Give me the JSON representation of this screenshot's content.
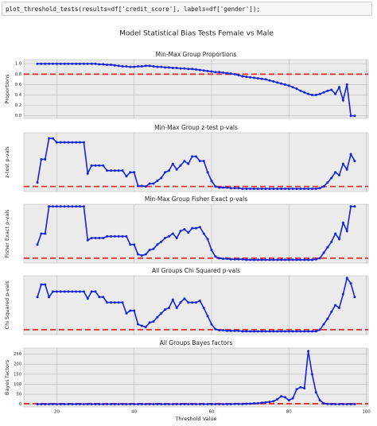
{
  "code": "plot_threshold_tests(results=df['credit_score'], labels=df['gender']);",
  "title": "Model Statistical Bias Tests Female vs Male",
  "chart_data": [
    {
      "type": "line",
      "title": "Min-Max Group Proportions",
      "ylabel": "Proportions",
      "x": [
        15,
        16,
        17,
        18,
        19,
        20,
        21,
        22,
        23,
        24,
        25,
        26,
        27,
        28,
        29,
        30,
        31,
        32,
        33,
        34,
        35,
        36,
        37,
        38,
        39,
        40,
        41,
        42,
        43,
        44,
        45,
        46,
        47,
        48,
        49,
        50,
        51,
        52,
        53,
        54,
        55,
        56,
        57,
        58,
        59,
        60,
        61,
        62,
        63,
        64,
        65,
        66,
        67,
        68,
        69,
        70,
        71,
        72,
        73,
        74,
        75,
        76,
        77,
        78,
        79,
        80,
        81,
        82,
        83,
        84,
        85,
        86,
        87,
        88,
        89,
        90,
        91,
        92,
        93,
        94,
        95,
        96,
        97
      ],
      "series": [
        {
          "color": "#1524d8",
          "values": [
            1,
            1,
            1,
            1,
            1,
            1,
            1,
            1,
            1,
            1,
            1,
            1,
            1,
            1,
            1,
            1,
            0.99,
            0.99,
            0.98,
            0.98,
            0.97,
            0.96,
            0.95,
            0.95,
            0.94,
            0.94,
            0.95,
            0.95,
            0.96,
            0.96,
            0.95,
            0.94,
            0.94,
            0.93,
            0.93,
            0.92,
            0.92,
            0.91,
            0.91,
            0.9,
            0.9,
            0.89,
            0.88,
            0.87,
            0.86,
            0.85,
            0.84,
            0.84,
            0.83,
            0.82,
            0.81,
            0.8,
            0.78,
            0.76,
            0.75,
            0.74,
            0.73,
            0.72,
            0.71,
            0.7,
            0.68,
            0.66,
            0.64,
            0.62,
            0.6,
            0.58,
            0.55,
            0.52,
            0.48,
            0.45,
            0.42,
            0.4,
            0.4,
            0.42,
            0.45,
            0.48,
            0.5,
            0.42,
            0.55,
            0.3,
            0.6,
            0,
            0
          ]
        }
      ],
      "reference_line": {
        "value": 0.8,
        "color": "#e8302b"
      },
      "xlim": [
        11.5,
        100.5
      ],
      "xticks": [
        20,
        40,
        60,
        80,
        100
      ],
      "ylim": [
        -0.05,
        1.08
      ],
      "yticks": [
        {
          "value": 0,
          "label": "0.0"
        },
        0.2,
        0.4,
        0.6,
        0.8,
        {
          "value": 1,
          "label": "1.0"
        }
      ],
      "grid": true
    },
    {
      "type": "line",
      "title": "Min-Max Group z-test p-vals",
      "ylabel": "z-test p-vals",
      "x": [
        15,
        16,
        17,
        18,
        19,
        20,
        21,
        22,
        23,
        24,
        25,
        26,
        27,
        28,
        29,
        30,
        31,
        32,
        33,
        34,
        35,
        36,
        37,
        38,
        39,
        40,
        41,
        42,
        43,
        44,
        45,
        46,
        47,
        48,
        49,
        50,
        51,
        52,
        53,
        54,
        55,
        56,
        57,
        58,
        59,
        60,
        61,
        62,
        63,
        64,
        65,
        66,
        67,
        68,
        69,
        70,
        71,
        72,
        73,
        74,
        75,
        76,
        77,
        78,
        79,
        80,
        81,
        82,
        83,
        84,
        85,
        86,
        87,
        88,
        89,
        90,
        91,
        92,
        93,
        94,
        95,
        96,
        97
      ],
      "series": [
        {
          "color": "#1524d8",
          "values": [
            0.12,
            0.53,
            0.53,
            0.9,
            0.9,
            0.83,
            0.83,
            0.83,
            0.83,
            0.83,
            0.83,
            0.83,
            0.83,
            0.28,
            0.42,
            0.42,
            0.42,
            0.42,
            0.33,
            0.33,
            0.33,
            0.33,
            0.33,
            0.23,
            0.3,
            0.3,
            0.06,
            0.06,
            0.05,
            0.1,
            0.1,
            0.15,
            0.2,
            0.3,
            0.33,
            0.45,
            0.35,
            0.42,
            0.5,
            0.45,
            0.58,
            0.58,
            0.5,
            0.5,
            0.3,
            0.15,
            0.05,
            0.03,
            0.03,
            0.03,
            0.02,
            0.02,
            0.02,
            0.01,
            0.01,
            0.01,
            0.01,
            0.01,
            0.01,
            0.01,
            0.01,
            0.01,
            0.01,
            0.01,
            0.01,
            0.01,
            0.01,
            0.01,
            0.01,
            0.01,
            0.01,
            0.01,
            0.01,
            0.02,
            0.05,
            0.12,
            0.2,
            0.3,
            0.25,
            0.45,
            0.35,
            0.62,
            0.5
          ]
        }
      ],
      "reference_line": {
        "value": 0.05,
        "color": "#e8302b"
      },
      "xlim": [
        11.5,
        100.5
      ],
      "xticks": [
        20,
        40,
        60,
        80,
        100
      ],
      "ylim": [
        -0.04,
        1.0
      ],
      "yticks": [],
      "grid": true
    },
    {
      "type": "line",
      "title": "Min-Max Group Fisher Exact p-vals",
      "ylabel": "Fisher Exact p-vals",
      "x": [
        15,
        16,
        17,
        18,
        19,
        20,
        21,
        22,
        23,
        24,
        25,
        26,
        27,
        28,
        29,
        30,
        31,
        32,
        33,
        34,
        35,
        36,
        37,
        38,
        39,
        40,
        41,
        42,
        43,
        44,
        45,
        46,
        47,
        48,
        49,
        50,
        51,
        52,
        53,
        54,
        55,
        56,
        57,
        58,
        59,
        60,
        61,
        62,
        63,
        64,
        65,
        66,
        67,
        68,
        69,
        70,
        71,
        72,
        73,
        74,
        75,
        76,
        77,
        78,
        79,
        80,
        81,
        82,
        83,
        84,
        85,
        86,
        87,
        88,
        89,
        90,
        91,
        92,
        93,
        94,
        95,
        96,
        97
      ],
      "series": [
        {
          "color": "#1524d8",
          "values": [
            0.3,
            0.5,
            0.5,
            1,
            1,
            1,
            1,
            1,
            1,
            1,
            1,
            1,
            1,
            0.38,
            0.42,
            0.42,
            0.42,
            0.42,
            0.45,
            0.45,
            0.45,
            0.45,
            0.45,
            0.45,
            0.3,
            0.3,
            0.12,
            0.1,
            0.12,
            0.2,
            0.22,
            0.3,
            0.35,
            0.42,
            0.45,
            0.5,
            0.42,
            0.55,
            0.58,
            0.52,
            0.6,
            0.6,
            0.62,
            0.5,
            0.4,
            0.2,
            0.08,
            0.05,
            0.04,
            0.04,
            0.03,
            0.03,
            0.03,
            0.03,
            0.02,
            0.02,
            0.02,
            0.02,
            0.02,
            0.02,
            0.02,
            0.02,
            0.02,
            0.02,
            0.02,
            0.02,
            0.02,
            0.02,
            0.02,
            0.02,
            0.02,
            0.02,
            0.03,
            0.05,
            0.15,
            0.25,
            0.35,
            0.5,
            0.4,
            0.7,
            0.55,
            1,
            1
          ]
        }
      ],
      "reference_line": {
        "value": 0.05,
        "color": "#e8302b"
      },
      "xlim": [
        11.5,
        100.5
      ],
      "xticks": [
        20,
        40,
        60,
        80,
        100
      ],
      "ylim": [
        -0.04,
        1.04
      ],
      "yticks": [],
      "grid": true
    },
    {
      "type": "line",
      "title": "All Groups Chi Squared p-vals",
      "ylabel": "Chi Squared p-vals",
      "x": [
        15,
        16,
        17,
        18,
        19,
        20,
        21,
        22,
        23,
        24,
        25,
        26,
        27,
        28,
        29,
        30,
        31,
        32,
        33,
        34,
        35,
        36,
        37,
        38,
        39,
        40,
        41,
        42,
        43,
        44,
        45,
        46,
        47,
        48,
        49,
        50,
        51,
        52,
        53,
        54,
        55,
        56,
        57,
        58,
        59,
        60,
        61,
        62,
        63,
        64,
        65,
        66,
        67,
        68,
        69,
        70,
        71,
        72,
        73,
        74,
        75,
        76,
        77,
        78,
        79,
        80,
        81,
        82,
        83,
        84,
        85,
        86,
        87,
        88,
        89,
        90,
        91,
        92,
        93,
        94,
        95,
        96,
        97
      ],
      "series": [
        {
          "color": "#1524d8",
          "values": [
            0.65,
            0.88,
            0.88,
            0.65,
            0.75,
            0.75,
            0.75,
            0.75,
            0.75,
            0.75,
            0.75,
            0.75,
            0.75,
            0.62,
            0.75,
            0.75,
            0.65,
            0.65,
            0.55,
            0.55,
            0.55,
            0.55,
            0.55,
            0.35,
            0.4,
            0.4,
            0.15,
            0.12,
            0.1,
            0.18,
            0.2,
            0.28,
            0.35,
            0.42,
            0.45,
            0.6,
            0.45,
            0.55,
            0.62,
            0.55,
            0.55,
            0.55,
            0.58,
            0.45,
            0.3,
            0.15,
            0.06,
            0.04,
            0.04,
            0.03,
            0.03,
            0.03,
            0.03,
            0.02,
            0.02,
            0.02,
            0.02,
            0.02,
            0.02,
            0.02,
            0.02,
            0.02,
            0.02,
            0.02,
            0.02,
            0.02,
            0.02,
            0.02,
            0.02,
            0.02,
            0.02,
            0.02,
            0.02,
            0.05,
            0.15,
            0.25,
            0.38,
            0.5,
            0.45,
            0.7,
            1,
            0.9,
            0.65
          ]
        }
      ],
      "reference_line": {
        "value": 0.05,
        "color": "#e8302b"
      },
      "xlim": [
        11.5,
        100.5
      ],
      "xticks": [
        20,
        40,
        60,
        80,
        100
      ],
      "ylim": [
        -0.04,
        1.04
      ],
      "yticks": [],
      "grid": true
    },
    {
      "type": "line",
      "title": "All Groups Bayes factors",
      "ylabel": "Bayes factors",
      "xlabel": "Threshold Value",
      "x": [
        15,
        16,
        17,
        18,
        19,
        20,
        21,
        22,
        23,
        24,
        25,
        26,
        27,
        28,
        29,
        30,
        31,
        32,
        33,
        34,
        35,
        36,
        37,
        38,
        39,
        40,
        41,
        42,
        43,
        44,
        45,
        46,
        47,
        48,
        49,
        50,
        51,
        52,
        53,
        54,
        55,
        56,
        57,
        58,
        59,
        60,
        61,
        62,
        63,
        64,
        65,
        66,
        67,
        68,
        69,
        70,
        71,
        72,
        73,
        74,
        75,
        76,
        77,
        78,
        79,
        80,
        81,
        82,
        83,
        84,
        85,
        86,
        87,
        88,
        89,
        90,
        91,
        92,
        93,
        94,
        95,
        96,
        97
      ],
      "series": [
        {
          "color": "#1524d8",
          "values": [
            1,
            1,
            1,
            1,
            1,
            1,
            1,
            1,
            1,
            1,
            1,
            1,
            1,
            1,
            1,
            1,
            1,
            1,
            1,
            1,
            1,
            1,
            1,
            1,
            1,
            1,
            1,
            1,
            1,
            1,
            1,
            1,
            1,
            1,
            1,
            1,
            1,
            1,
            1,
            1,
            1,
            1,
            1,
            1,
            1,
            1,
            1,
            1,
            1,
            1,
            1,
            2,
            2,
            2,
            3,
            3,
            5,
            5,
            8,
            10,
            12,
            15,
            25,
            40,
            35,
            20,
            30,
            75,
            85,
            80,
            265,
            150,
            60,
            20,
            5,
            2,
            1,
            1,
            1,
            1,
            1,
            1,
            1
          ]
        }
      ],
      "reference_line": {
        "value": 3,
        "color": "#e8302b"
      },
      "xlim": [
        11.5,
        100.5
      ],
      "xticks": [
        20,
        40,
        60,
        80,
        100
      ],
      "ylim": [
        -13,
        280
      ],
      "yticks": [
        0,
        50,
        100,
        150,
        200,
        250
      ],
      "grid": true
    }
  ]
}
